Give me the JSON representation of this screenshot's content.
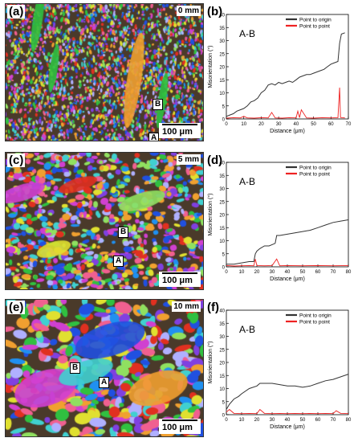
{
  "panels": [
    {
      "label": "(a)",
      "depth": "0 mm",
      "scale": "100 μm",
      "pointA": "A",
      "pointB": "B"
    },
    {
      "label": "(c)",
      "depth": "5 mm",
      "scale": "100 μm",
      "pointA": "A",
      "pointB": "B"
    },
    {
      "label": "(e)",
      "depth": "10 mm",
      "scale": "100 μm",
      "pointA": "A",
      "pointB": "B"
    }
  ],
  "chart_data": [
    {
      "panel": "(b)",
      "type": "line",
      "annotation": "A-B",
      "xlabel": "Distance (μm)",
      "ylabel": "Misorientation (°)",
      "xlim": [
        0,
        70
      ],
      "ylim": [
        0,
        40
      ],
      "xticks": [
        0,
        10,
        20,
        30,
        40,
        50,
        60,
        70
      ],
      "yticks": [
        0,
        5,
        10,
        15,
        20,
        25,
        30,
        35,
        40
      ],
      "legend": "top-right",
      "series": [
        {
          "name": "Point to origin",
          "color": "#333333",
          "x": [
            0,
            2,
            4,
            6,
            8,
            10,
            12,
            14,
            16,
            18,
            20,
            22,
            24,
            26,
            28,
            30,
            32,
            34,
            36,
            38,
            40,
            42,
            44,
            46,
            48,
            50,
            52,
            54,
            56,
            58,
            60,
            62,
            64,
            65,
            66,
            68
          ],
          "y": [
            1,
            1.5,
            2,
            3,
            3.5,
            4,
            5,
            6.5,
            7,
            8,
            10,
            11,
            13,
            13.5,
            13,
            14,
            13.5,
            14,
            14.5,
            14,
            15,
            16,
            16.5,
            17,
            17,
            17.5,
            18,
            18.5,
            19,
            20,
            21,
            21.5,
            22,
            29,
            32.5,
            33
          ]
        },
        {
          "name": "Point to point",
          "color": "#ee2222",
          "x": [
            0,
            4,
            8,
            10,
            12,
            16,
            20,
            24,
            26,
            28,
            32,
            36,
            40,
            41,
            42,
            43,
            46,
            50,
            55,
            60,
            64,
            65,
            65.5,
            66,
            68
          ],
          "y": [
            0.3,
            0.5,
            0.4,
            1,
            0.4,
            0.3,
            0.5,
            0.4,
            2.5,
            0.4,
            0.3,
            0.5,
            0.4,
            3,
            0.5,
            3.5,
            0.4,
            0.3,
            0.5,
            0.4,
            0.5,
            12,
            0.6,
            0.5,
            0.4
          ]
        }
      ]
    },
    {
      "panel": "(d)",
      "type": "line",
      "annotation": "A-B",
      "xlabel": "Distance (μm)",
      "ylabel": "Misorientation (°)",
      "xlim": [
        0,
        80
      ],
      "ylim": [
        0,
        40
      ],
      "xticks": [
        0,
        10,
        20,
        30,
        40,
        50,
        60,
        70,
        80
      ],
      "yticks": [
        0,
        5,
        10,
        15,
        20,
        25,
        30,
        35,
        40
      ],
      "legend": "top-right",
      "series": [
        {
          "name": "Point to origin",
          "color": "#333333",
          "x": [
            0,
            5,
            10,
            15,
            18,
            19,
            20,
            22,
            25,
            28,
            30,
            32,
            33,
            35,
            40,
            45,
            50,
            55,
            60,
            65,
            70,
            75,
            80
          ],
          "y": [
            1,
            1,
            1.5,
            2,
            2,
            5,
            6,
            7,
            8,
            8,
            8.5,
            9,
            12,
            12,
            12.5,
            13,
            13.5,
            14,
            15,
            16,
            17,
            17.5,
            18
          ]
        },
        {
          "name": "Point to point",
          "color": "#ee2222",
          "x": [
            0,
            5,
            10,
            15,
            18,
            19,
            20,
            25,
            30,
            33,
            35,
            40,
            50,
            60,
            70,
            80
          ],
          "y": [
            0.5,
            0.3,
            0.4,
            0.5,
            0.4,
            3,
            0.5,
            0.4,
            0.5,
            3,
            0.4,
            0.5,
            0.4,
            0.5,
            0.4,
            0.5
          ]
        }
      ]
    },
    {
      "panel": "(f)",
      "type": "line",
      "annotation": "A-B",
      "xlabel": "Distance (μm)",
      "ylabel": "Misorientation (°)",
      "xlim": [
        0,
        80
      ],
      "ylim": [
        0,
        40
      ],
      "xticks": [
        0,
        10,
        20,
        30,
        40,
        50,
        60,
        70,
        80
      ],
      "yticks": [
        0,
        5,
        10,
        15,
        20,
        25,
        30,
        35,
        40
      ],
      "legend": "top-right",
      "series": [
        {
          "name": "Point to origin",
          "color": "#333333",
          "x": [
            0,
            2,
            5,
            8,
            10,
            15,
            20,
            22,
            25,
            30,
            35,
            40,
            45,
            50,
            55,
            60,
            65,
            70,
            75,
            80
          ],
          "y": [
            2,
            4,
            6,
            7,
            8,
            10,
            11,
            12,
            12,
            12,
            11.5,
            11,
            11,
            10.5,
            11,
            12,
            13,
            13.5,
            14.5,
            15.5
          ]
        },
        {
          "name": "Point to point",
          "color": "#ee2222",
          "x": [
            0,
            2,
            5,
            10,
            15,
            20,
            22,
            25,
            30,
            35,
            40,
            45,
            50,
            55,
            60,
            65,
            70,
            72,
            75,
            80
          ],
          "y": [
            1,
            2,
            0.5,
            0.4,
            0.5,
            0.4,
            2,
            0.5,
            0.4,
            0.5,
            0.4,
            0.5,
            0.4,
            0.5,
            0.4,
            0.5,
            0.4,
            1.5,
            0.5,
            0.4
          ]
        }
      ]
    }
  ],
  "chart_labels": [
    "(b)",
    "(d)",
    "(f)"
  ],
  "colors": {
    "map_palette": [
      "#e03020",
      "#30c040",
      "#2050e0",
      "#d040d0",
      "#f0a030",
      "#40d0d0",
      "#e0e030",
      "#8040e0",
      "#f06090",
      "#90e060",
      "#2090f0",
      "#b0b0ff"
    ]
  }
}
